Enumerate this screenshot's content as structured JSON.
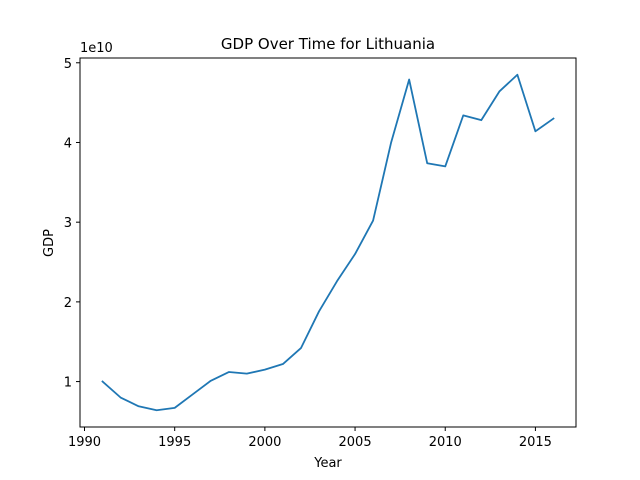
{
  "chart_data": {
    "type": "line",
    "title": "GDP Over Time for Lithuania",
    "xlabel": "Year",
    "ylabel": "GDP",
    "y_multiplier_label": "1e10",
    "xlim": [
      1989.75,
      2017.25
    ],
    "ylim": [
      0.43,
      5.06
    ],
    "x_ticks": [
      1990,
      1995,
      2000,
      2005,
      2010,
      2015
    ],
    "y_ticks": [
      1,
      2,
      3,
      4,
      5
    ],
    "grid": false,
    "line_color": "#1f77b4",
    "series": [
      {
        "x": [
          1991,
          1992,
          1993,
          1994,
          1995,
          1996,
          1997,
          1998,
          1999,
          2000,
          2001,
          2002,
          2003,
          2004,
          2005,
          2006,
          2007,
          2008,
          2009,
          2010,
          2011,
          2012,
          2013,
          2014,
          2015,
          2016
        ],
        "values": [
          1.0,
          0.8,
          0.69,
          0.64,
          0.67,
          0.84,
          1.01,
          1.12,
          1.1,
          1.15,
          1.22,
          1.42,
          1.88,
          2.26,
          2.6,
          3.02,
          4.0,
          4.79,
          3.74,
          3.7,
          4.34,
          4.28,
          4.64,
          4.85,
          4.14,
          4.3
        ]
      }
    ]
  }
}
